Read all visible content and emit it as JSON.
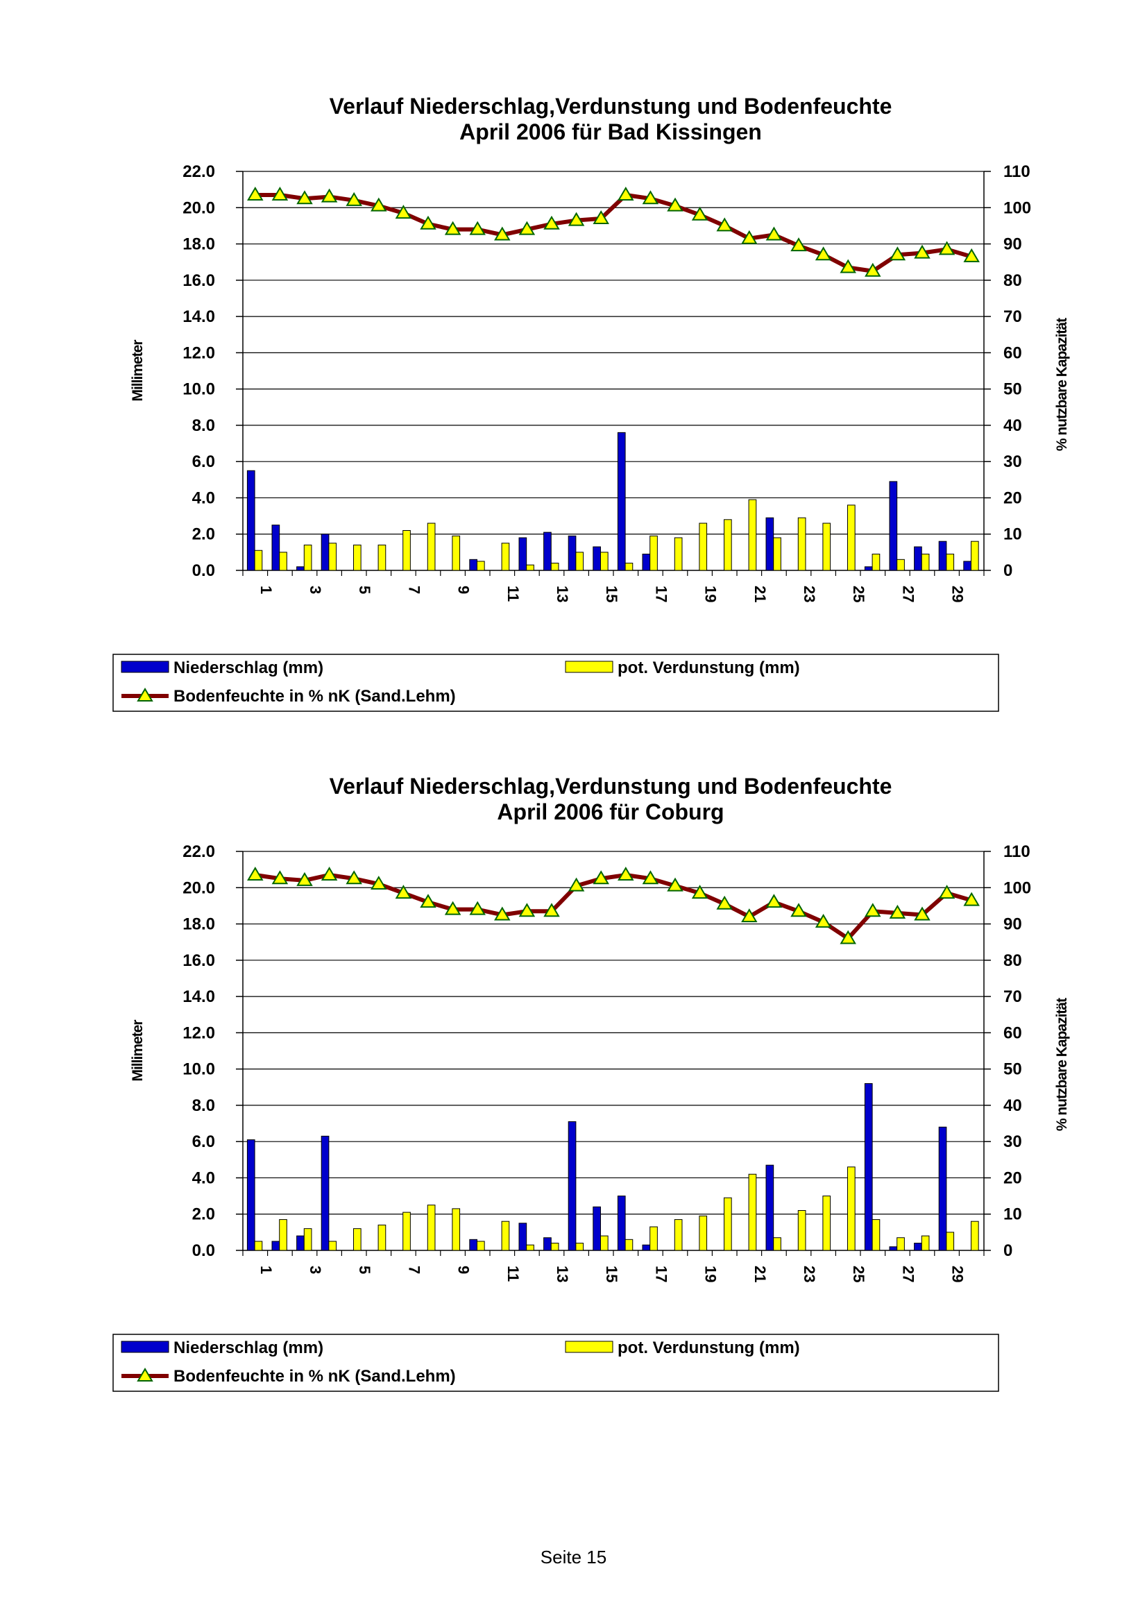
{
  "chart_data": [
    {
      "type": "bar",
      "title": "Verlauf Niederschlag,Verdunstung und Bodenfeuchte",
      "subtitle": "April  2006 für Bad Kissingen",
      "ylabel": "Millimeter",
      "y2label": "% nutzbare Kapazität",
      "ylim": [
        0,
        22
      ],
      "y2lim": [
        0,
        110
      ],
      "yticks": [
        "0.0",
        "2.0",
        "4.0",
        "6.0",
        "8.0",
        "10.0",
        "12.0",
        "14.0",
        "16.0",
        "18.0",
        "20.0",
        "22.0"
      ],
      "y2ticks": [
        "0",
        "10",
        "20",
        "30",
        "40",
        "50",
        "60",
        "70",
        "80",
        "90",
        "100",
        "110"
      ],
      "xticks": [
        "1",
        "3",
        "5",
        "7",
        "9",
        "11",
        "13",
        "15",
        "17",
        "19",
        "21",
        "23",
        "25",
        "27",
        "29"
      ],
      "categories": [
        1,
        2,
        3,
        4,
        5,
        6,
        7,
        8,
        9,
        10,
        11,
        12,
        13,
        14,
        15,
        16,
        17,
        18,
        19,
        20,
        21,
        22,
        23,
        24,
        25,
        26,
        27,
        28,
        29,
        30
      ],
      "series": [
        {
          "name": "Niederschlag (mm)",
          "kind": "bar",
          "axis": "left",
          "color": "#0000cc",
          "values": [
            5.5,
            2.5,
            0.2,
            2.0,
            0,
            0,
            0,
            0,
            0,
            0.6,
            0,
            1.8,
            2.1,
            1.9,
            1.3,
            7.6,
            0.9,
            0,
            0,
            0,
            0,
            2.9,
            0,
            0,
            0,
            0.2,
            4.9,
            1.3,
            1.6,
            0.5
          ]
        },
        {
          "name": "pot. Verdunstung (mm)",
          "kind": "bar",
          "axis": "left",
          "color": "#ffff00",
          "values": [
            1.1,
            1.0,
            1.4,
            1.5,
            1.4,
            1.4,
            2.2,
            2.6,
            1.9,
            0.5,
            1.5,
            0.3,
            0.4,
            1.0,
            1.0,
            0.4,
            1.9,
            1.8,
            2.6,
            2.8,
            3.9,
            1.8,
            2.9,
            2.6,
            3.6,
            0.9,
            0.6,
            0.9,
            0.9,
            1.6
          ]
        },
        {
          "name": "Bodenfeuchte in % nK (Sand.Lehm)",
          "kind": "line",
          "axis": "right",
          "color": "#800000",
          "marker_color": "#ffff00",
          "values": [
            103.5,
            103.5,
            102.5,
            103,
            102,
            100.5,
            98.5,
            95.5,
            94,
            94,
            92.5,
            94,
            95.5,
            96.5,
            97,
            103.5,
            102.5,
            100.5,
            98,
            95,
            91.5,
            92.5,
            89.5,
            87,
            83.5,
            82.5,
            87,
            87.5,
            88.5,
            86.5
          ]
        }
      ],
      "legend": {
        "position": "bottom",
        "items": [
          "Niederschlag (mm)",
          "pot. Verdunstung (mm)",
          "Bodenfeuchte in % nK (Sand.Lehm)"
        ]
      }
    },
    {
      "type": "bar",
      "title": "Verlauf Niederschlag,Verdunstung und Bodenfeuchte",
      "subtitle": "April 2006 für Coburg",
      "ylabel": "Millimeter",
      "y2label": "% nutzbare Kapazität",
      "ylim": [
        0,
        22
      ],
      "y2lim": [
        0,
        110
      ],
      "yticks": [
        "0.0",
        "2.0",
        "4.0",
        "6.0",
        "8.0",
        "10.0",
        "12.0",
        "14.0",
        "16.0",
        "18.0",
        "20.0",
        "22.0"
      ],
      "y2ticks": [
        "0",
        "10",
        "20",
        "30",
        "40",
        "50",
        "60",
        "70",
        "80",
        "90",
        "100",
        "110"
      ],
      "xticks": [
        "1",
        "3",
        "5",
        "7",
        "9",
        "11",
        "13",
        "15",
        "17",
        "19",
        "21",
        "23",
        "25",
        "27",
        "29"
      ],
      "categories": [
        1,
        2,
        3,
        4,
        5,
        6,
        7,
        8,
        9,
        10,
        11,
        12,
        13,
        14,
        15,
        16,
        17,
        18,
        19,
        20,
        21,
        22,
        23,
        24,
        25,
        26,
        27,
        28,
        29,
        30
      ],
      "series": [
        {
          "name": "Niederschlag (mm)",
          "kind": "bar",
          "axis": "left",
          "color": "#0000cc",
          "values": [
            6.1,
            0.5,
            0.8,
            6.3,
            0,
            0,
            0,
            0,
            0,
            0.6,
            0,
            1.5,
            0.7,
            7.1,
            2.4,
            3.0,
            0.3,
            0,
            0,
            0,
            0,
            4.7,
            0,
            0,
            0,
            9.2,
            0.2,
            0.4,
            6.8,
            0
          ]
        },
        {
          "name": "pot. Verdunstung (mm)",
          "kind": "bar",
          "axis": "left",
          "color": "#ffff00",
          "values": [
            0.5,
            1.7,
            1.2,
            0.5,
            1.2,
            1.4,
            2.1,
            2.5,
            2.3,
            0.5,
            1.6,
            0.3,
            0.4,
            0.4,
            0.8,
            0.6,
            1.3,
            1.7,
            1.9,
            2.9,
            4.2,
            0.7,
            2.2,
            3.0,
            4.6,
            1.7,
            0.7,
            0.8,
            1.0,
            1.6
          ]
        },
        {
          "name": "Bodenfeuchte in % nK (Sand.Lehm)",
          "kind": "line",
          "axis": "right",
          "color": "#800000",
          "marker_color": "#ffff00",
          "values": [
            103.5,
            102.5,
            102,
            103.5,
            102.5,
            101,
            98.5,
            96,
            94,
            94,
            92.5,
            93.5,
            93.5,
            100.5,
            102.5,
            103.5,
            102.5,
            100.5,
            98.5,
            95.5,
            92,
            96,
            93.5,
            90.5,
            86,
            93.5,
            93,
            92.5,
            98.5,
            96.5
          ]
        }
      ],
      "legend": {
        "position": "bottom",
        "items": [
          "Niederschlag (mm)",
          "pot. Verdunstung (mm)",
          "Bodenfeuchte in % nK (Sand.Lehm)"
        ]
      }
    }
  ],
  "footer": {
    "page_label": "Seite 15"
  }
}
